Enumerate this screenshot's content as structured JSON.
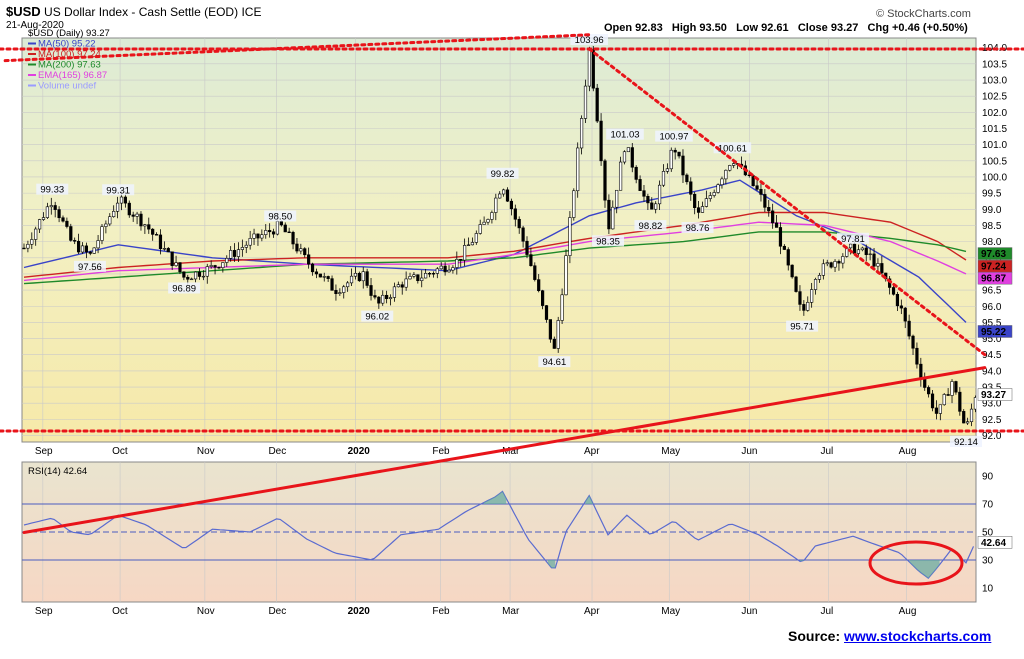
{
  "header": {
    "symbol": "$USD",
    "title": "US Dollar Index - Cash Settle (EOD)",
    "exchange": "ICE",
    "date": "21-Aug-2020",
    "brand": "© StockCharts.com",
    "ohlc": {
      "open": "Open 92.83",
      "high": "High 93.50",
      "low": "Low 92.61",
      "close": "Close 93.27",
      "chg": "Chg +0.46 (+0.50%)"
    }
  },
  "legend": [
    {
      "text": "$USD (Daily) 93.27",
      "color": "#000000"
    },
    {
      "text": "MA(50) 95.22",
      "color": "#3a44c8"
    },
    {
      "text": "MA(100) 97.24",
      "color": "#cc2222"
    },
    {
      "text": "MA(200) 97.63",
      "color": "#1f8a2a"
    },
    {
      "text": "EMA(165) 96.87",
      "color": "#e040e0"
    },
    {
      "text": "Volume undef",
      "color": "#9b9bff"
    }
  ],
  "source": {
    "prefix": "Source: ",
    "link": "www.stockcharts.com"
  },
  "colors": {
    "price_bg": "#f5efb9",
    "rsi_bg": "#f6dccd",
    "trend": "#e8141a",
    "candle": "#000000"
  },
  "chart_data": [
    {
      "type": "line",
      "title": "US Dollar Index - Cash Settle (EOD)",
      "ylim": [
        91.8,
        104.3
      ],
      "y_ticks": [
        "92.0",
        "92.5",
        "93.0",
        "93.5",
        "94.0",
        "94.5",
        "95.0",
        "95.5",
        "96.0",
        "96.5",
        "97.0",
        "97.5",
        "98.0",
        "98.5",
        "99.0",
        "99.5",
        "100.0",
        "100.5",
        "101.0",
        "101.5",
        "102.0",
        "102.5",
        "103.0",
        "103.5",
        "104.0"
      ],
      "x_labels": [
        "Sep",
        "Oct",
        "Nov",
        "Dec",
        "2020",
        "Feb",
        "Mar",
        "Apr",
        "May",
        "Jun",
        "Jul",
        "Aug"
      ],
      "x_label_t": [
        0.02,
        0.102,
        0.192,
        0.268,
        0.352,
        0.442,
        0.516,
        0.603,
        0.685,
        0.77,
        0.854,
        0.937
      ],
      "price_keypoints": [
        [
          0,
          97.8
        ],
        [
          0.02,
          98.8
        ],
        [
          0.03,
          99.33
        ],
        [
          0.05,
          98.0
        ],
        [
          0.07,
          97.56
        ],
        [
          0.1,
          99.31
        ],
        [
          0.13,
          98.5
        ],
        [
          0.17,
          96.89
        ],
        [
          0.2,
          97.2
        ],
        [
          0.24,
          98.0
        ],
        [
          0.272,
          98.5
        ],
        [
          0.3,
          97.4
        ],
        [
          0.33,
          96.5
        ],
        [
          0.36,
          97.0
        ],
        [
          0.375,
          96.02
        ],
        [
          0.4,
          96.7
        ],
        [
          0.42,
          96.9
        ],
        [
          0.46,
          97.4
        ],
        [
          0.49,
          98.6
        ],
        [
          0.508,
          99.82
        ],
        [
          0.535,
          97.6
        ],
        [
          0.563,
          94.61
        ],
        [
          0.575,
          97.4
        ],
        [
          0.6,
          103.96
        ],
        [
          0.61,
          101.5
        ],
        [
          0.62,
          98.35
        ],
        [
          0.638,
          101.03
        ],
        [
          0.665,
          98.82
        ],
        [
          0.69,
          100.97
        ],
        [
          0.715,
          98.76
        ],
        [
          0.752,
          100.61
        ],
        [
          0.78,
          99.5
        ],
        [
          0.8,
          98.3
        ],
        [
          0.826,
          95.71
        ],
        [
          0.84,
          97.0
        ],
        [
          0.88,
          97.81
        ],
        [
          0.9,
          97.5
        ],
        [
          0.93,
          96.0
        ],
        [
          0.955,
          93.6
        ],
        [
          0.97,
          92.6
        ],
        [
          0.985,
          93.7
        ],
        [
          1.0,
          92.14
        ],
        [
          1.01,
          93.27
        ]
      ],
      "series": [
        {
          "name": "MA(50)",
          "values": [
            [
              0,
              97.2
            ],
            [
              0.1,
              97.9
            ],
            [
              0.2,
              97.5
            ],
            [
              0.3,
              97.3
            ],
            [
              0.45,
              97.1
            ],
            [
              0.52,
              97.6
            ],
            [
              0.6,
              98.8
            ],
            [
              0.65,
              99.2
            ],
            [
              0.72,
              99.6
            ],
            [
              0.76,
              99.9
            ],
            [
              0.82,
              98.8
            ],
            [
              0.88,
              98.1
            ],
            [
              0.95,
              96.9
            ],
            [
              1.01,
              95.22
            ]
          ]
        },
        {
          "name": "MA(100)",
          "values": [
            [
              0,
              96.9
            ],
            [
              0.1,
              97.2
            ],
            [
              0.2,
              97.4
            ],
            [
              0.3,
              97.5
            ],
            [
              0.45,
              97.5
            ],
            [
              0.52,
              97.7
            ],
            [
              0.6,
              98.1
            ],
            [
              0.7,
              98.5
            ],
            [
              0.78,
              98.9
            ],
            [
              0.85,
              98.9
            ],
            [
              0.92,
              98.6
            ],
            [
              0.97,
              98.0
            ],
            [
              1.01,
              97.24
            ]
          ]
        },
        {
          "name": "MA(200)",
          "values": [
            [
              0,
              96.7
            ],
            [
              0.1,
              96.9
            ],
            [
              0.2,
              97.1
            ],
            [
              0.3,
              97.3
            ],
            [
              0.45,
              97.4
            ],
            [
              0.52,
              97.5
            ],
            [
              0.6,
              97.8
            ],
            [
              0.7,
              98.0
            ],
            [
              0.78,
              98.3
            ],
            [
              0.85,
              98.3
            ],
            [
              0.92,
              98.1
            ],
            [
              0.97,
              97.9
            ],
            [
              1.01,
              97.63
            ]
          ]
        },
        {
          "name": "EMA(165)",
          "values": [
            [
              0,
              96.8
            ],
            [
              0.1,
              97.1
            ],
            [
              0.2,
              97.2
            ],
            [
              0.3,
              97.3
            ],
            [
              0.45,
              97.3
            ],
            [
              0.52,
              97.6
            ],
            [
              0.6,
              98.0
            ],
            [
              0.7,
              98.3
            ],
            [
              0.78,
              98.6
            ],
            [
              0.85,
              98.5
            ],
            [
              0.92,
              98.0
            ],
            [
              0.97,
              97.4
            ],
            [
              1.01,
              96.87
            ]
          ]
        }
      ],
      "annotations": [
        {
          "text": "99.33",
          "t": 0.03,
          "y": 99.33,
          "pos": "above"
        },
        {
          "text": "97.56",
          "t": 0.07,
          "y": 97.56,
          "pos": "below"
        },
        {
          "text": "99.31",
          "t": 0.1,
          "y": 99.31,
          "pos": "above"
        },
        {
          "text": "96.89",
          "t": 0.17,
          "y": 96.89,
          "pos": "below"
        },
        {
          "text": "98.50",
          "t": 0.272,
          "y": 98.5,
          "pos": "above"
        },
        {
          "text": "96.02",
          "t": 0.375,
          "y": 96.02,
          "pos": "below"
        },
        {
          "text": "99.82",
          "t": 0.508,
          "y": 99.82,
          "pos": "above"
        },
        {
          "text": "94.61",
          "t": 0.563,
          "y": 94.61,
          "pos": "below"
        },
        {
          "text": "103.96",
          "t": 0.6,
          "y": 103.96,
          "pos": "above"
        },
        {
          "text": "98.35",
          "t": 0.62,
          "y": 98.35,
          "pos": "below"
        },
        {
          "text": "101.03",
          "t": 0.638,
          "y": 101.03,
          "pos": "above"
        },
        {
          "text": "98.82",
          "t": 0.665,
          "y": 98.82,
          "pos": "below"
        },
        {
          "text": "100.97",
          "t": 0.69,
          "y": 100.97,
          "pos": "above"
        },
        {
          "text": "98.76",
          "t": 0.715,
          "y": 98.76,
          "pos": "below"
        },
        {
          "text": "100.61",
          "t": 0.752,
          "y": 100.61,
          "pos": "above"
        },
        {
          "text": "95.71",
          "t": 0.826,
          "y": 95.71,
          "pos": "below"
        },
        {
          "text": "97.81",
          "t": 0.88,
          "y": 97.81,
          "pos": "above"
        },
        {
          "text": "92.14",
          "t": 1.0,
          "y": 92.14,
          "pos": "below"
        }
      ],
      "last_value_tags": [
        {
          "text": "97.63",
          "y": 97.63,
          "color": "#1f8a2a"
        },
        {
          "text": "97.24",
          "y": 97.24,
          "color": "#cc2222"
        },
        {
          "text": "96.87",
          "y": 96.87,
          "color": "#e040e0"
        },
        {
          "text": "95.22",
          "y": 95.22,
          "color": "#3a44c8"
        },
        {
          "text": "93.27",
          "y": 93.27,
          "color": "#000000"
        }
      ],
      "trendlines": [
        {
          "name": "upper-rising",
          "style": "dotted",
          "from": {
            "t": -0.02,
            "y": 103.6
          },
          "to": {
            "t": 0.6,
            "y": 104.4
          }
        },
        {
          "name": "resistance-horizontal",
          "style": "dotted",
          "y": 103.96
        },
        {
          "name": "descending",
          "style": "dotted",
          "from": {
            "t": 0.6,
            "y": 103.96
          },
          "to": {
            "t": 1.02,
            "y": 94.5
          }
        },
        {
          "name": "rising-support",
          "style": "solid",
          "from": {
            "t": 0.0,
            "y": 89.0
          },
          "to": {
            "t": 1.02,
            "y": 94.1
          }
        },
        {
          "name": "support-horizontal",
          "style": "dotted",
          "y": 92.14
        }
      ]
    },
    {
      "type": "line",
      "title": "RSI(14) 42.64",
      "ylim": [
        0,
        100
      ],
      "y_ticks": [
        "10",
        "30",
        "50",
        "70",
        "90"
      ],
      "levels": [
        70,
        50,
        30
      ],
      "series": [
        {
          "name": "RSI(14)",
          "values": [
            [
              0,
              55
            ],
            [
              0.03,
              60
            ],
            [
              0.05,
              50
            ],
            [
              0.07,
              48
            ],
            [
              0.1,
              62
            ],
            [
              0.13,
              55
            ],
            [
              0.17,
              38
            ],
            [
              0.2,
              52
            ],
            [
              0.24,
              50
            ],
            [
              0.27,
              60
            ],
            [
              0.3,
              45
            ],
            [
              0.33,
              35
            ],
            [
              0.37,
              30
            ],
            [
              0.4,
              48
            ],
            [
              0.44,
              52
            ],
            [
              0.47,
              65
            ],
            [
              0.5,
              75
            ],
            [
              0.508,
              79
            ],
            [
              0.535,
              45
            ],
            [
              0.563,
              22
            ],
            [
              0.575,
              50
            ],
            [
              0.6,
              76
            ],
            [
              0.61,
              62
            ],
            [
              0.62,
              48
            ],
            [
              0.64,
              62
            ],
            [
              0.665,
              48
            ],
            [
              0.69,
              58
            ],
            [
              0.715,
              44
            ],
            [
              0.75,
              56
            ],
            [
              0.78,
              48
            ],
            [
              0.8,
              40
            ],
            [
              0.826,
              28
            ],
            [
              0.84,
              40
            ],
            [
              0.88,
              47
            ],
            [
              0.9,
              42
            ],
            [
              0.93,
              35
            ],
            [
              0.95,
              22
            ],
            [
              0.96,
              17
            ],
            [
              0.97,
              25
            ],
            [
              0.985,
              38
            ],
            [
              1.0,
              28
            ],
            [
              1.01,
              42.64
            ]
          ]
        }
      ],
      "highlight": "circle-around-aug-oversold"
    }
  ]
}
